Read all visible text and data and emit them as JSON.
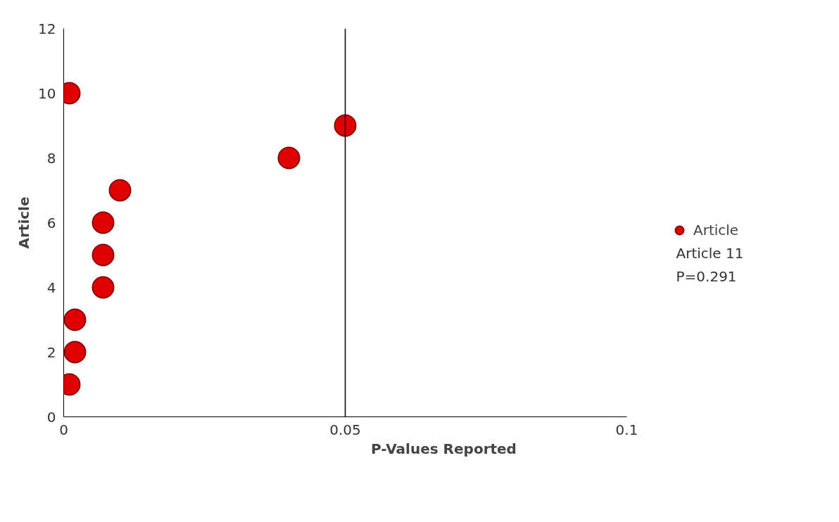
{
  "chart_data": {
    "type": "scatter",
    "xlabel": "P-Values Reported",
    "ylabel": "Article",
    "series": [
      {
        "name": "Article",
        "color": "#e00000",
        "x": [
          0.001,
          0.002,
          0.002,
          0.007,
          0.007,
          0.007,
          0.01,
          0.04,
          0.05,
          0.001
        ],
        "values": [
          1,
          2,
          3,
          4,
          5,
          6,
          7,
          8,
          9,
          10
        ]
      }
    ],
    "xlim": [
      0,
      0.1
    ],
    "xticks": [
      0,
      0.05,
      0.1
    ],
    "ylim": [
      0,
      12
    ],
    "yticks": [
      0,
      2,
      4,
      6,
      8,
      10,
      12
    ],
    "ref_lines": [
      {
        "axis": "x",
        "value": 0.05,
        "color": "#000000"
      }
    ],
    "annotations": [
      "Article 11\nP=0.291"
    ],
    "marker": "circle",
    "grid": false,
    "legend": "right"
  }
}
